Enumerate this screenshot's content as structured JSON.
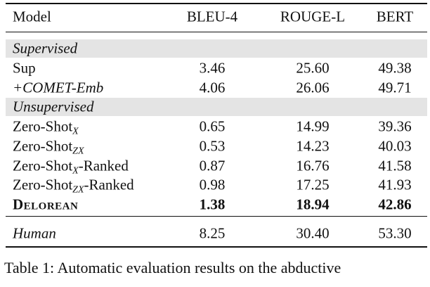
{
  "table": {
    "header": [
      "Model",
      "BLEU-4",
      "ROUGE-L",
      "BERT"
    ],
    "rows": [
      {
        "section": "Supervised"
      },
      {
        "model": "Sup",
        "values": [
          "3.46",
          "25.60",
          "49.38"
        ]
      },
      {
        "model": "+COMET-Emb",
        "italic": true,
        "values": [
          "4.06",
          "26.06",
          "49.71"
        ]
      },
      {
        "section": "Unsupervised"
      },
      {
        "model": "Zero-Shot",
        "sub": "X",
        "values": [
          "0.65",
          "14.99",
          "39.36"
        ]
      },
      {
        "model": "Zero-Shot",
        "sub": "ZX",
        "values": [
          "0.53",
          "14.23",
          "40.03"
        ]
      },
      {
        "model": "Zero-Shot",
        "sub": "X",
        "suffix": "-Ranked",
        "values": [
          "0.87",
          "16.76",
          "41.58"
        ]
      },
      {
        "model": "Zero-Shot",
        "sub": "ZX",
        "suffix": "-Ranked",
        "values": [
          "0.98",
          "17.25",
          "41.93"
        ]
      },
      {
        "model": "Delorean",
        "bold": true,
        "small_caps": true,
        "values": [
          "1.38",
          "18.94",
          "42.86"
        ]
      }
    ],
    "final_rows": [
      {
        "model": "Human",
        "italic": true,
        "values": [
          "8.25",
          "30.40",
          "53.30"
        ]
      }
    ]
  },
  "caption": "Table 1: Automatic evaluation results on the abductive"
}
